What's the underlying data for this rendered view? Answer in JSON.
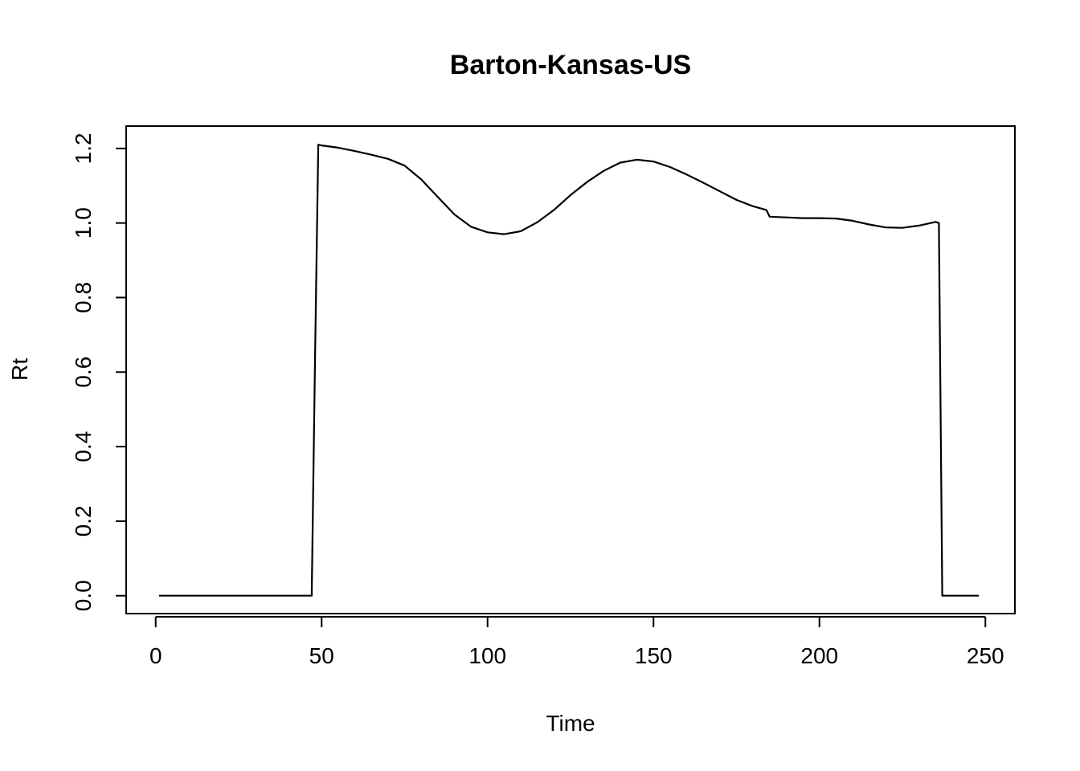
{
  "chart_data": {
    "type": "line",
    "title": "Barton-Kansas-US",
    "xlabel": "Time",
    "ylabel": "Rt",
    "xlim": [
      -8.9,
      258.9
    ],
    "ylim": [
      -0.048,
      1.26
    ],
    "xticks": [
      0,
      50,
      100,
      150,
      200,
      250
    ],
    "xtick_labels": [
      "0",
      "50",
      "100",
      "150",
      "200",
      "250"
    ],
    "yticks": [
      0.0,
      0.2,
      0.4,
      0.6,
      0.8,
      1.0,
      1.2
    ],
    "ytick_labels": [
      "0.0",
      "0.2",
      "0.4",
      "0.6",
      "0.8",
      "1.0",
      "1.2"
    ],
    "grid": false,
    "series": [
      {
        "color": "#000000",
        "x": [
          1,
          10,
          20,
          30,
          40,
          47,
          48,
          49,
          50,
          55,
          60,
          65,
          70,
          75,
          80,
          85,
          90,
          95,
          100,
          105,
          110,
          115,
          120,
          125,
          130,
          135,
          140,
          145,
          150,
          155,
          160,
          165,
          170,
          175,
          180,
          184,
          185,
          190,
          195,
          200,
          205,
          210,
          215,
          220,
          225,
          230,
          235,
          236,
          237,
          240,
          245,
          248
        ],
        "y": [
          0.0,
          0.0,
          0.0,
          0.0,
          0.0,
          0.0,
          0.63,
          1.21,
          1.208,
          1.202,
          1.193,
          1.183,
          1.172,
          1.154,
          1.117,
          1.07,
          1.023,
          0.99,
          0.975,
          0.97,
          0.978,
          1.002,
          1.035,
          1.075,
          1.11,
          1.14,
          1.162,
          1.17,
          1.165,
          1.15,
          1.13,
          1.108,
          1.085,
          1.062,
          1.045,
          1.035,
          1.017,
          1.015,
          1.013,
          1.013,
          1.012,
          1.006,
          0.996,
          0.988,
          0.987,
          0.993,
          1.003,
          1.0,
          0.0,
          0.0,
          0.0,
          0.0
        ]
      }
    ]
  }
}
